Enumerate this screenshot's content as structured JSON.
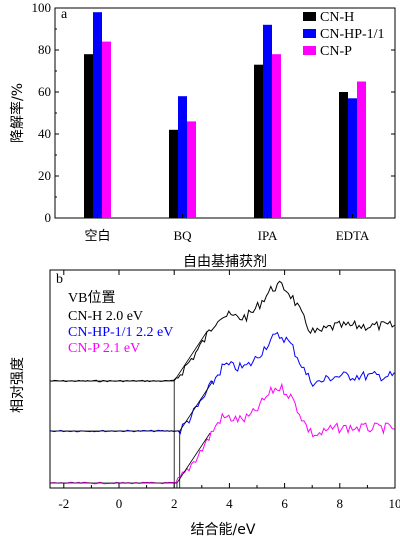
{
  "chart_data": [
    {
      "panel_label": "a",
      "type": "bar",
      "ylabel": "降解率/%",
      "xlabel": "自由基捕获剂",
      "categories": [
        "空白",
        "BQ",
        "IPA",
        "EDTA"
      ],
      "ylim": [
        0,
        100
      ],
      "yticks": [
        0,
        20,
        40,
        60,
        80,
        100
      ],
      "legend_placement": "top-right",
      "series": [
        {
          "name": "CN-H",
          "color": "#000000",
          "values": [
            78,
            42,
            73,
            60
          ]
        },
        {
          "name": "CN-HP-1/1",
          "color": "#0000ff",
          "values": [
            98,
            58,
            92,
            57
          ]
        },
        {
          "name": "CN-P",
          "color": "#ff00ff",
          "values": [
            84,
            46,
            78,
            65
          ]
        }
      ]
    },
    {
      "panel_label": "b",
      "type": "line",
      "xlabel": "结合能/eV",
      "ylabel": "相对强度",
      "xlim": [
        -2.5,
        10
      ],
      "xticks": [
        -2,
        0,
        2,
        4,
        6,
        8,
        10
      ],
      "legend_title": "VB位置",
      "legend_placement": "top-left",
      "series": [
        {
          "name": "CN-H 2.0 eV",
          "color": "#000000",
          "vb": 2.0
        },
        {
          "name": "CN-HP-1/1 2.2 eV",
          "color": "#0000ff",
          "vb": 2.2
        },
        {
          "name": "CN-P 2.1 eV",
          "color": "#ff00ff",
          "vb": 2.1
        }
      ]
    }
  ]
}
